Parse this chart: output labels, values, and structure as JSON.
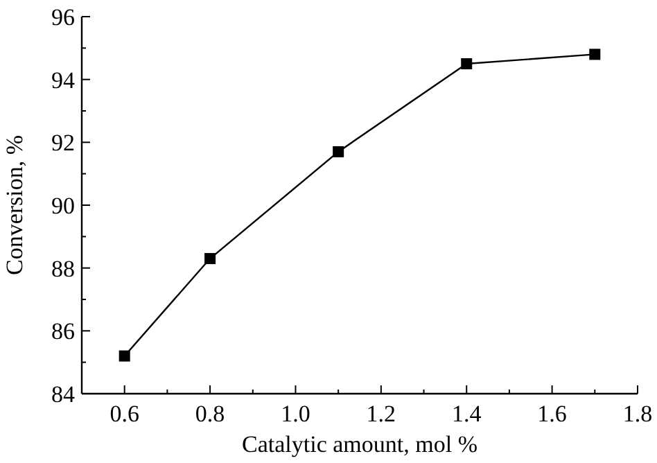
{
  "chart_data": {
    "type": "line",
    "xlabel": "Catalytic amount, mol %",
    "ylabel": "Conversion, %",
    "x": [
      0.6,
      0.8,
      1.1,
      1.4,
      1.7
    ],
    "series": [
      {
        "color": "#000000",
        "values": [
          85.2,
          88.3,
          91.7,
          94.5,
          94.8
        ]
      }
    ],
    "xlim": [
      0.5,
      1.8
    ],
    "ylim": [
      84,
      96
    ],
    "xticks": [
      {
        "value": 0.5,
        "label": null
      },
      0.6,
      {
        "value": 0.7,
        "label": null
      },
      0.8,
      {
        "value": 0.9,
        "label": null
      },
      {
        "value": 1,
        "label": "1.0"
      },
      {
        "value": 1.1,
        "label": null
      },
      1.2,
      {
        "value": 1.3,
        "label": null
      },
      1.4,
      {
        "value": 1.5,
        "label": null
      },
      1.6,
      {
        "value": 1.7,
        "label": null
      },
      1.8
    ],
    "yticks": [
      84,
      {
        "value": 85,
        "label": null
      },
      86,
      {
        "value": 87,
        "label": null
      },
      88,
      {
        "value": 89,
        "label": null
      },
      90,
      {
        "value": 91,
        "label": null
      },
      92,
      {
        "value": 93,
        "label": null
      },
      94,
      {
        "value": 95,
        "label": null
      },
      96
    ],
    "marker": "square",
    "line_style": "solid"
  }
}
